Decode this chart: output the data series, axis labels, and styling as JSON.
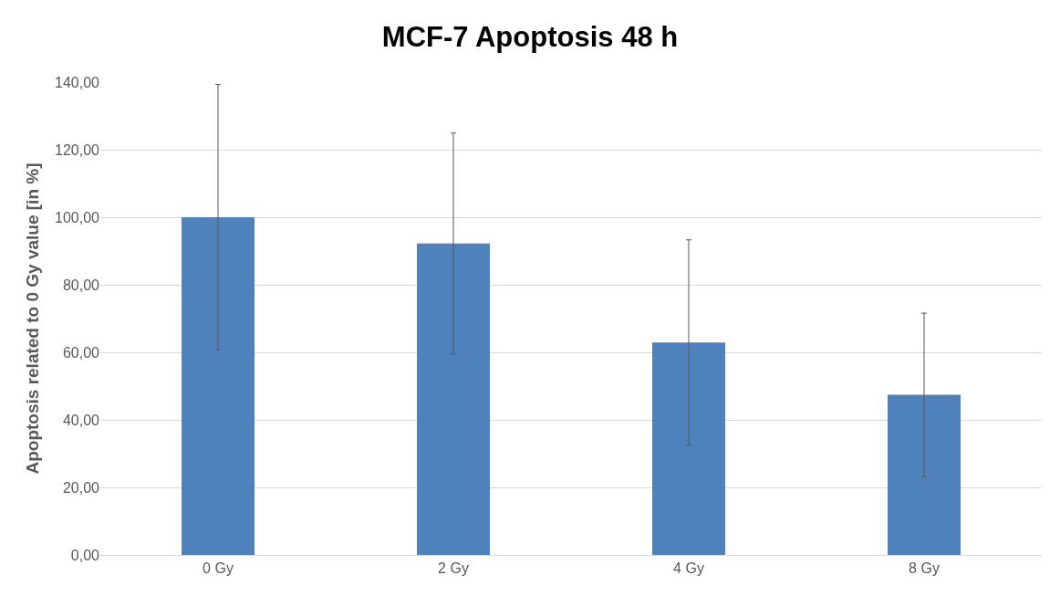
{
  "chart_data": {
    "type": "bar",
    "title": "MCF-7 Apoptosis 48 h",
    "ylabel": "Apoptosis related to 0 Gy value [in %]",
    "categories": [
      "0 Gy",
      "2 Gy",
      "4 Gy",
      "8 Gy"
    ],
    "values": [
      100,
      92.2,
      62.9,
      47.4
    ],
    "errors": [
      39.3,
      32.7,
      30.4,
      24.2
    ],
    "color": "#4f81bd",
    "ylim": [
      0,
      140
    ],
    "yticks": [
      {
        "value": 0,
        "label": "0,00"
      },
      {
        "value": 20,
        "label": "20,00"
      },
      {
        "value": 40,
        "label": "40,00"
      },
      {
        "value": 60,
        "label": "60,00"
      },
      {
        "value": 80,
        "label": "80,00"
      },
      {
        "value": 100,
        "label": "100,00"
      },
      {
        "value": 120,
        "label": "120,00"
      },
      {
        "value": 140,
        "label": "140,00"
      }
    ],
    "grid": "y",
    "legend": false
  }
}
